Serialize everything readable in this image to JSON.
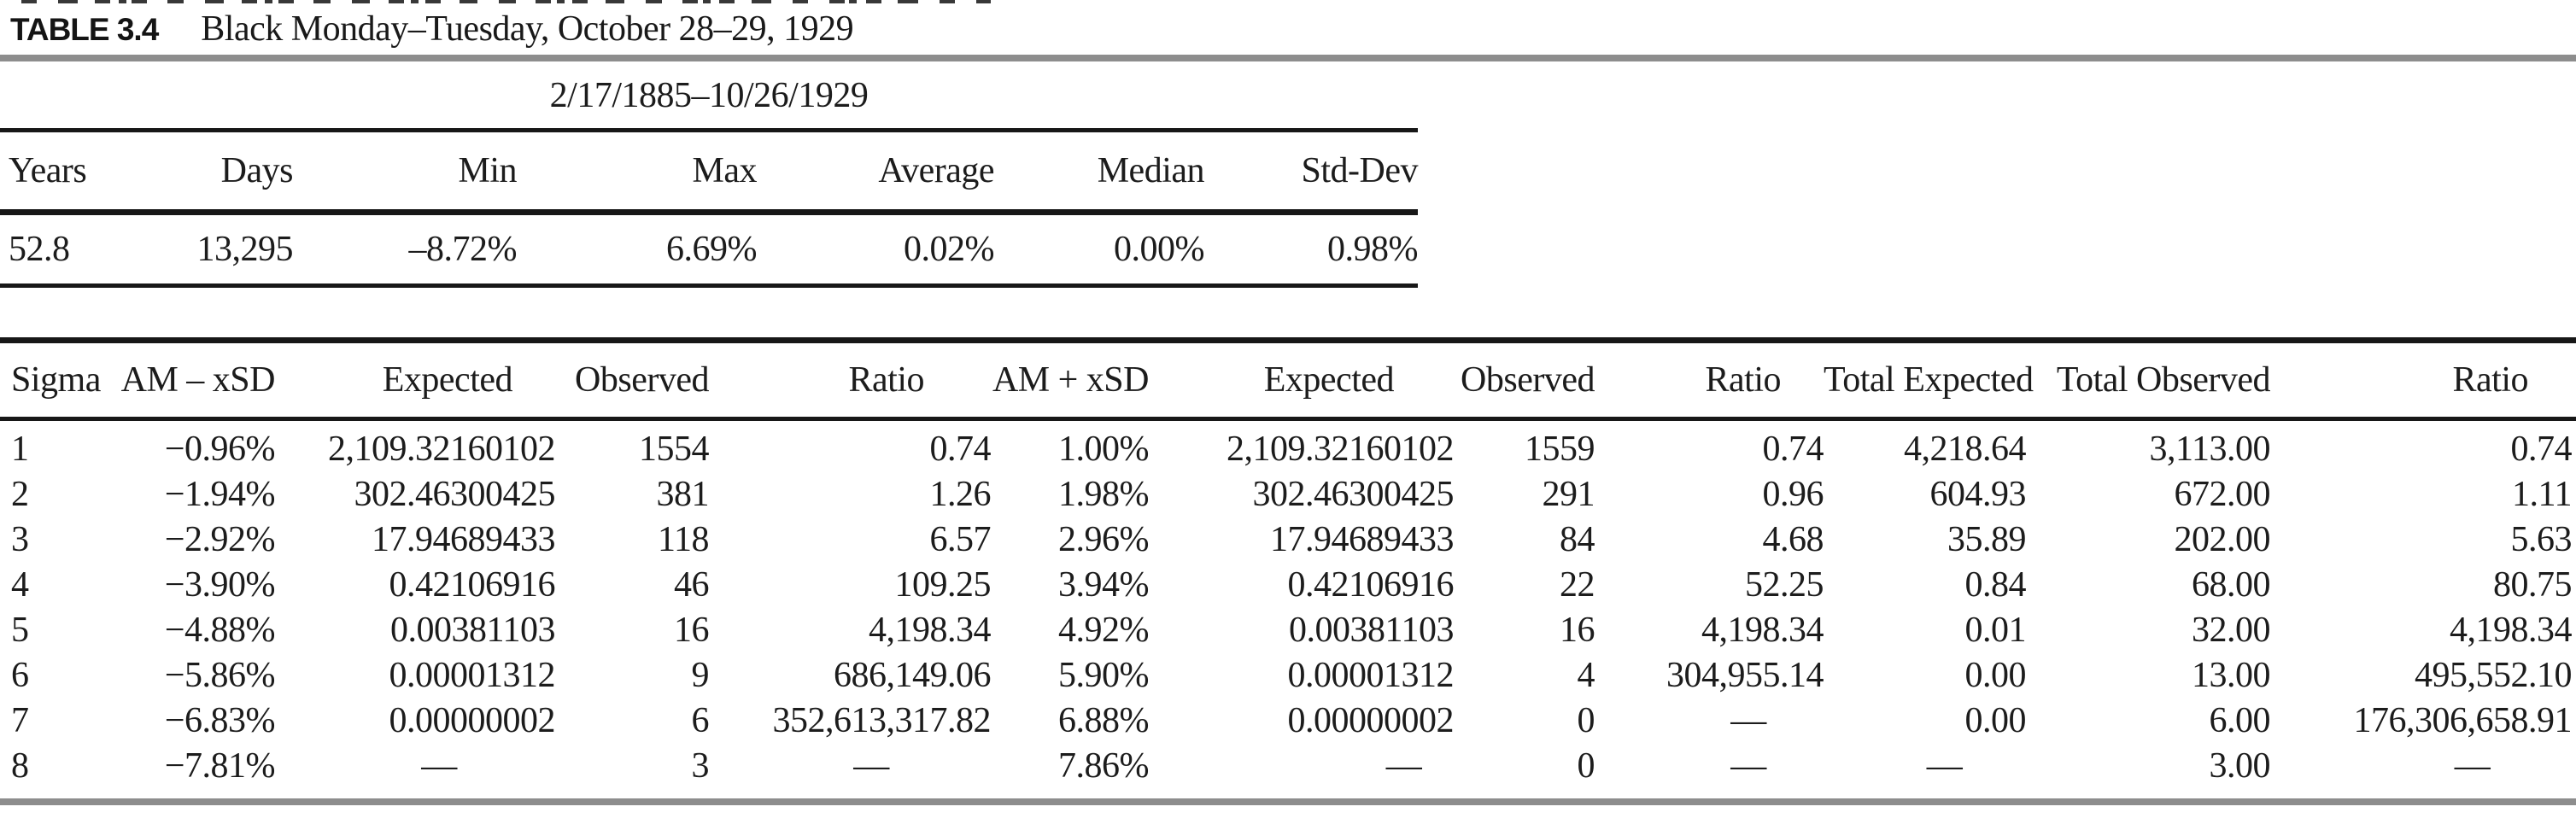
{
  "title": {
    "label": "TABLE 3.4",
    "text": "Black Monday–Tuesday, October 28–29, 1929"
  },
  "summary_table": {
    "date_range": "2/17/1885–10/26/1929",
    "headers": [
      "Years",
      "Days",
      "Min",
      "Max",
      "Average",
      "Median",
      "Std-Dev"
    ],
    "rows": [
      [
        "52.8",
        "13,295",
        "–8.72%",
        "6.69%",
        "0.02%",
        "0.00%",
        "0.98%"
      ]
    ]
  },
  "sigma_table": {
    "headers": [
      "Sigma",
      "AM – xSD",
      "Expected",
      "Observed",
      "Ratio",
      "AM + xSD",
      "Expected",
      "Observed",
      "Ratio",
      "Total Expected",
      "Total Observed",
      "Ratio"
    ],
    "rows": [
      [
        "1",
        "−0.96%",
        "2,109.32160102",
        "1554",
        "0.74",
        "1.00%",
        "2,109.32160102",
        "1559",
        "0.74",
        "4,218.64",
        "3,113.00",
        "0.74"
      ],
      [
        "2",
        "−1.94%",
        "302.46300425",
        "381",
        "1.26",
        "1.98%",
        "302.46300425",
        "291",
        "0.96",
        "604.93",
        "672.00",
        "1.11"
      ],
      [
        "3",
        "−2.92%",
        "17.94689433",
        "118",
        "6.57",
        "2.96%",
        "17.94689433",
        "84",
        "4.68",
        "35.89",
        "202.00",
        "5.63"
      ],
      [
        "4",
        "−3.90%",
        "0.42106916",
        "46",
        "109.25",
        "3.94%",
        "0.42106916",
        "22",
        "52.25",
        "0.84",
        "68.00",
        "80.75"
      ],
      [
        "5",
        "−4.88%",
        "0.00381103",
        "16",
        "4,198.34",
        "4.92%",
        "0.00381103",
        "16",
        "4,198.34",
        "0.01",
        "32.00",
        "4,198.34"
      ],
      [
        "6",
        "−5.86%",
        "0.00001312",
        "9",
        "686,149.06",
        "5.90%",
        "0.00001312",
        "4",
        "304,955.14",
        "0.00",
        "13.00",
        "495,552.10"
      ],
      [
        "7",
        "−6.83%",
        "0.00000002",
        "6",
        "352,613,317.82",
        "6.88%",
        "0.00000002",
        "0",
        "—",
        "0.00",
        "6.00",
        "176,306,658.91"
      ],
      [
        "8",
        "−7.81%",
        "—",
        "3",
        "—",
        "7.86%",
        "—",
        "0",
        "—",
        "—",
        "3.00",
        "—"
      ]
    ]
  },
  "colors": {
    "rule_gray": "#8d8d8d",
    "rule_black": "#171717",
    "text": "#1c1c1c"
  }
}
